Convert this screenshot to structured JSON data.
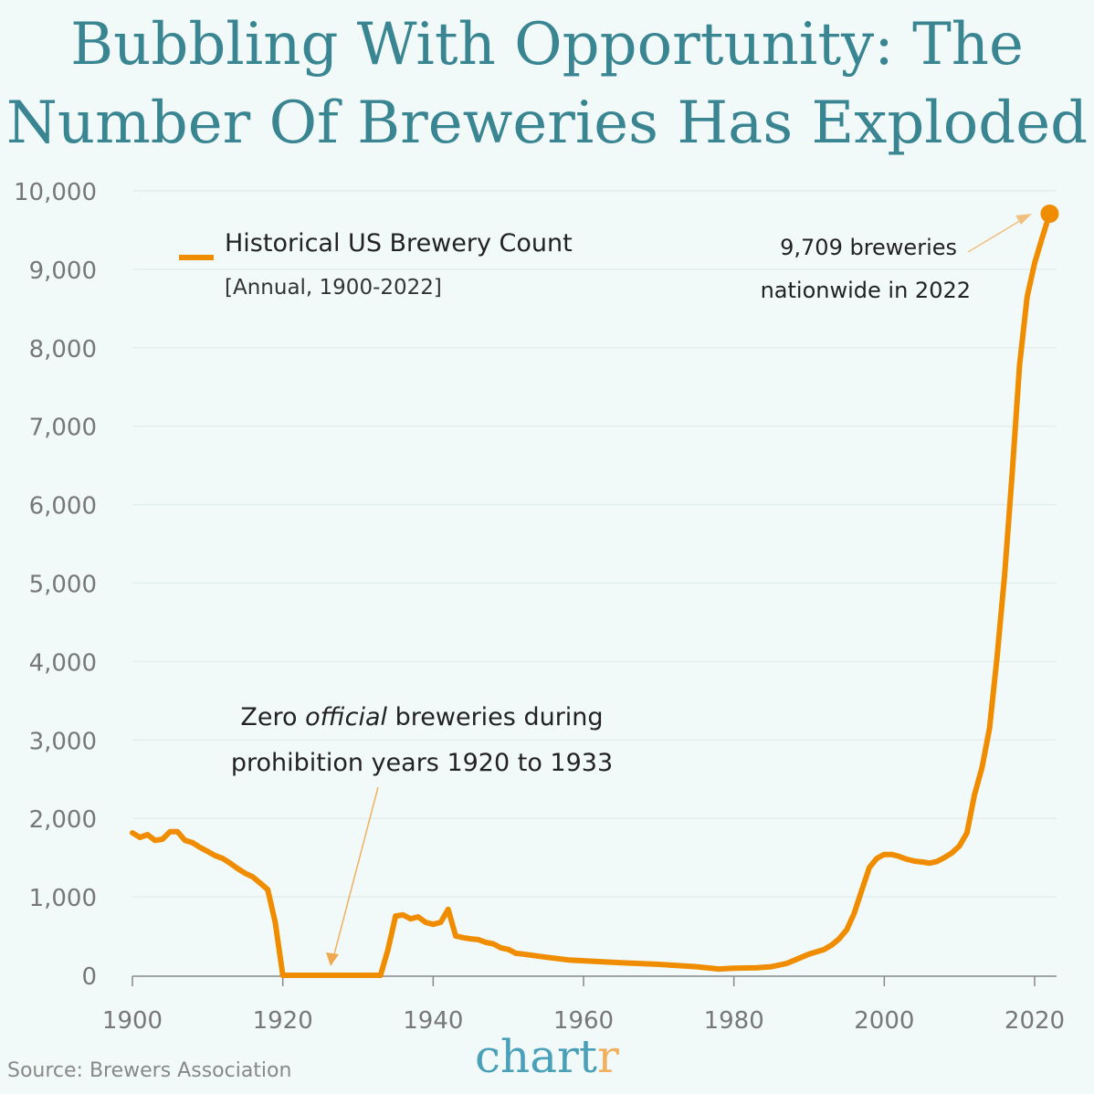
{
  "title": "Bubbling With Opportunity: The Number Of Breweries Has Exploded",
  "source": "Source: Brewers Association",
  "logo": {
    "main": "chart",
    "accent": "r"
  },
  "chart_data": {
    "type": "line",
    "title": "Bubbling With Opportunity: The Number Of Breweries Has Exploded",
    "xlabel": "",
    "ylabel": "",
    "xlim": [
      1900,
      2022
    ],
    "ylim": [
      0,
      10000
    ],
    "x_ticks": [
      1900,
      1920,
      1940,
      1960,
      1980,
      2000,
      2020
    ],
    "x_tick_labels": [
      "1900",
      "1920",
      "1940",
      "1960",
      "1980",
      "2000",
      "2020"
    ],
    "y_ticks": [
      0,
      1000,
      2000,
      3000,
      4000,
      5000,
      6000,
      7000,
      8000,
      9000,
      10000
    ],
    "y_tick_labels": [
      "0",
      "1,000",
      "2,000",
      "3,000",
      "4,000",
      "5,000",
      "6,000",
      "7,000",
      "8,000",
      "9,000",
      "10,000"
    ],
    "grid": "horizontal",
    "legend": {
      "position": "top-left",
      "label": "Historical US Brewery Count",
      "sublabel": "[Annual, 1900-2022]"
    },
    "color": "#f08c00",
    "series": [
      {
        "name": "Historical US Brewery Count",
        "x": [
          1900,
          1901,
          1902,
          1903,
          1904,
          1905,
          1906,
          1907,
          1908,
          1909,
          1910,
          1911,
          1912,
          1913,
          1914,
          1915,
          1916,
          1917,
          1918,
          1919,
          1920,
          1932,
          1933,
          1934,
          1935,
          1936,
          1937,
          1938,
          1939,
          1940,
          1941,
          1942,
          1943,
          1944,
          1945,
          1946,
          1947,
          1948,
          1949,
          1950,
          1951,
          1952,
          1955,
          1958,
          1960,
          1965,
          1970,
          1975,
          1978,
          1980,
          1983,
          1985,
          1987,
          1988,
          1990,
          1992,
          1993,
          1994,
          1995,
          1996,
          1997,
          1998,
          1999,
          2000,
          2001,
          2002,
          2003,
          2004,
          2005,
          2006,
          2007,
          2008,
          2009,
          2010,
          2011,
          2012,
          2013,
          2014,
          2015,
          2016,
          2017,
          2018,
          2019,
          2020,
          2021,
          2022
        ],
        "y": [
          1816,
          1758,
          1793,
          1720,
          1735,
          1830,
          1830,
          1720,
          1690,
          1630,
          1580,
          1525,
          1490,
          1430,
          1360,
          1300,
          1255,
          1175,
          1092,
          675,
          0,
          0,
          0,
          330,
          755,
          770,
          720,
          745,
          675,
          650,
          675,
          840,
          500,
          480,
          465,
          455,
          420,
          400,
          350,
          330,
          280,
          270,
          230,
          195,
          185,
          160,
          140,
          110,
          80,
          90,
          95,
          110,
          150,
          190,
          270,
          330,
          385,
          465,
          580,
          790,
          1080,
          1370,
          1490,
          1540,
          1540,
          1515,
          1480,
          1455,
          1445,
          1430,
          1450,
          1500,
          1560,
          1650,
          1815,
          2300,
          2650,
          3150,
          4050,
          5100,
          6380,
          7780,
          8650,
          9080,
          9400,
          9709
        ]
      }
    ],
    "annotations": [
      {
        "line1": "9,709 breweries",
        "line2": "nationwide in 2022",
        "target": [
          2022,
          9709
        ]
      },
      {
        "line1_pre": "Zero ",
        "line1_em": "official",
        "line1_post": " breweries during",
        "line2": "prohibition years 1920 to 1933",
        "target": [
          1926.5,
          100
        ]
      }
    ]
  }
}
